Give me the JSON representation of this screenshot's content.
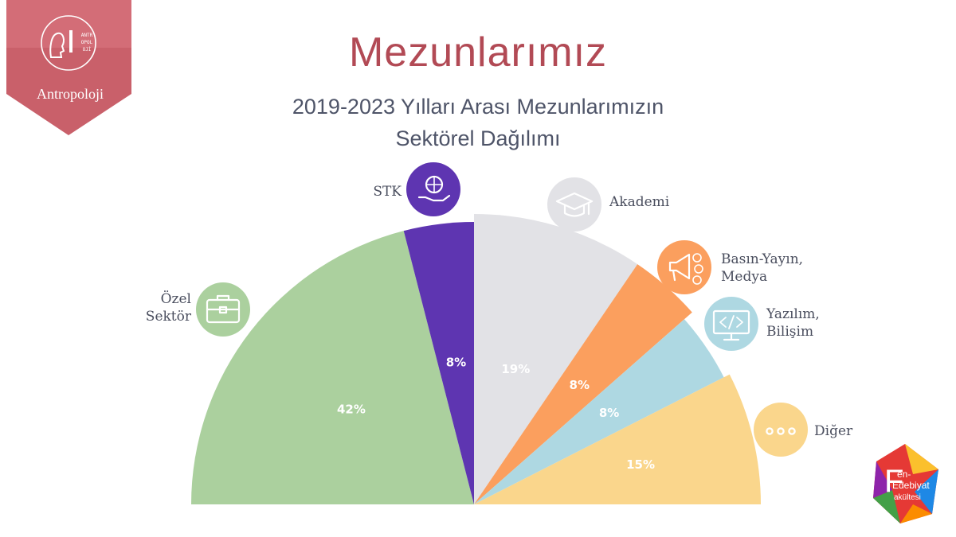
{
  "badge": {
    "label": "Antropoloji",
    "color": "#c9606a",
    "logo_text": "ANTROPOLOJİ"
  },
  "header": {
    "title": "Mezunlarımız",
    "subtitle_line1": "2019-2023 Yılları Arası Mezunlarımızın",
    "subtitle_line2": "Sektörel Dağılımı"
  },
  "chart_data": {
    "type": "pie",
    "variant": "semicircle",
    "title": "Mezunlarımız",
    "subtitle": "2019-2023 Yılları Arası Mezunlarımızın Sektörel Dağılımı",
    "unit": "%",
    "slices": [
      {
        "label": "Özel Sektör",
        "value": 42,
        "display": "42%",
        "color": "#abd09e",
        "icon": "briefcase-icon"
      },
      {
        "label": "STK",
        "value": 8,
        "display": "8%",
        "color": "#5e35b1",
        "icon": "hand-globe-icon"
      },
      {
        "label": "Akademi",
        "value": 19,
        "display": "19%",
        "color": "#e2e2e6",
        "icon": "graduation-cap-icon"
      },
      {
        "label": "Basın-Yayın, Medya",
        "value": 8,
        "display": "8%",
        "color": "#fb9f5e",
        "icon": "megaphone-icon"
      },
      {
        "label": "Yazılım, Bilişim",
        "value": 8,
        "display": "8%",
        "color": "#aed8e2",
        "icon": "code-monitor-icon"
      },
      {
        "label": "Diğer",
        "value": 15,
        "display": "15%",
        "color": "#fad68c",
        "icon": "ellipsis-icon"
      }
    ]
  },
  "footer_logo": {
    "line1": "en-",
    "line2": "Edebiyat",
    "line3": "akültesi",
    "letter": "F"
  }
}
